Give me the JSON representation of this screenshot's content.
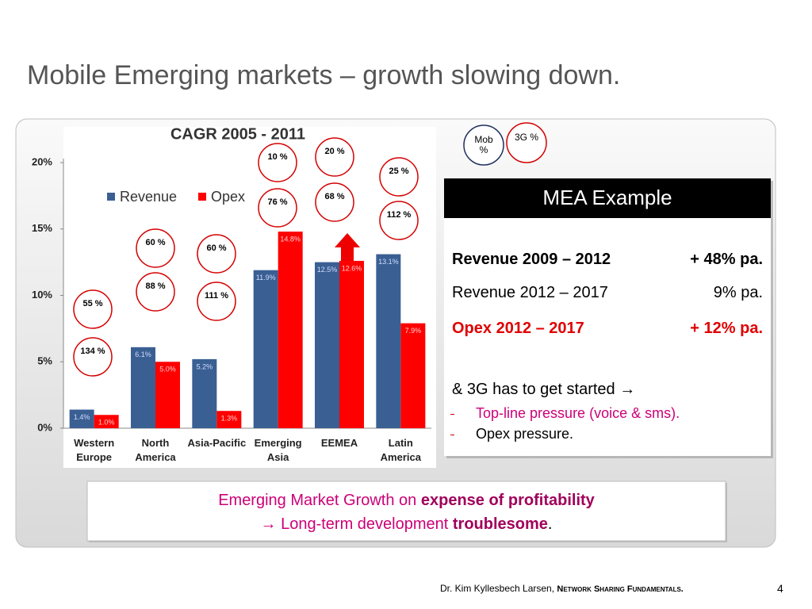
{
  "title": "Mobile Emerging markets – growth slowing down.",
  "chart_data": {
    "type": "bar",
    "title": "CAGR 2005 - 2011",
    "categories": [
      "Western Europe",
      "North America",
      "Asia-Pacific",
      "Emerging Asia",
      "EEMEA",
      "Latin America"
    ],
    "series": [
      {
        "name": "Revenue",
        "color": "#3a5f93",
        "values": [
          1.4,
          6.1,
          5.2,
          11.9,
          12.5,
          13.1
        ],
        "value_labels": [
          "1.4%",
          "6.1%",
          "5.2%",
          "11.9%",
          "12.5%",
          "13.1%"
        ]
      },
      {
        "name": "Opex",
        "color": "#ff0000",
        "values": [
          1.0,
          5.0,
          1.3,
          14.8,
          12.6,
          7.9
        ],
        "value_labels": [
          "1.0%",
          "5.0%",
          "1.3%",
          "14.8%",
          "12.6%",
          "7.9%"
        ]
      }
    ],
    "ylim": [
      0,
      20
    ],
    "yticks": [
      {
        "value": 0,
        "label": "0%"
      },
      {
        "value": 5,
        "label": "5%"
      },
      {
        "value": 10,
        "label": "10%"
      },
      {
        "value": 15,
        "label": "15%"
      },
      {
        "value": 20,
        "label": "20%"
      }
    ],
    "grid": false,
    "legend": "upper left"
  },
  "annotations": {
    "legend": [
      "Mob %",
      "3G %"
    ],
    "circles": [
      [
        "55 %",
        "134 %"
      ],
      [
        "60 %",
        "88 %"
      ],
      [
        "60 %",
        "111 %"
      ],
      [
        "10 %",
        "76 %"
      ],
      [
        "20 %",
        "68 %"
      ],
      [
        "25 %",
        "112 %"
      ]
    ]
  },
  "panel": {
    "title": "MEA Example",
    "rows": [
      [
        "Revenue 2009 – 2012",
        "+ 48% pa."
      ],
      [
        "Revenue 2012 – 2017",
        "9% pa."
      ],
      [
        "Opex 2012 – 2017",
        "+ 12% pa."
      ]
    ],
    "note": "& 3G has to get started →",
    "bullets": [
      "Top-line pressure (voice & sms).",
      "Opex pressure."
    ]
  },
  "callout": {
    "line1": [
      "Emerging Market Growth on",
      "expense of profitability"
    ],
    "line2": [
      "→ Long-term development",
      "troublesome",
      "."
    ]
  },
  "footer": {
    "author": "Dr. Kim Kyllesbech Larsen,",
    "talk": "Network Sharing Fundamentals.",
    "page": "4"
  }
}
